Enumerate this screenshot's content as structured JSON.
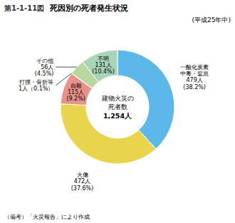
{
  "chart_data": {
    "type": "donut",
    "title_prefix": "第1-1-11図",
    "title": "死因別の死者発生状況",
    "subtitle": "(平成25年中)",
    "center_text": [
      "建物火災の",
      "死者数",
      "1,254人"
    ],
    "footer": "（備考）「火災報告」により作成",
    "categories": [
      "一酸化炭素\n中毒・窒息",
      "火傷",
      "自殺",
      "打撲・骨折等",
      "その他",
      "不明"
    ],
    "values": [
      479,
      472,
      115,
      1,
      56,
      131
    ],
    "value_labels": [
      "479人",
      "472人",
      "115人",
      "1人",
      "56人",
      "131人"
    ],
    "percentages": [
      38.2,
      37.6,
      9.2,
      0.1,
      4.5,
      10.4
    ],
    "percentage_labels": [
      "(38.2%)",
      "(37.6%)",
      "(9.2%)",
      "（0.1%）",
      "(4.5%)",
      "(10.4%)"
    ],
    "colors": [
      "#5bb8e8",
      "#e8d44d",
      "#e8928a",
      "#f5c98a",
      "#b8d8a0",
      "#a8d4b8"
    ]
  }
}
